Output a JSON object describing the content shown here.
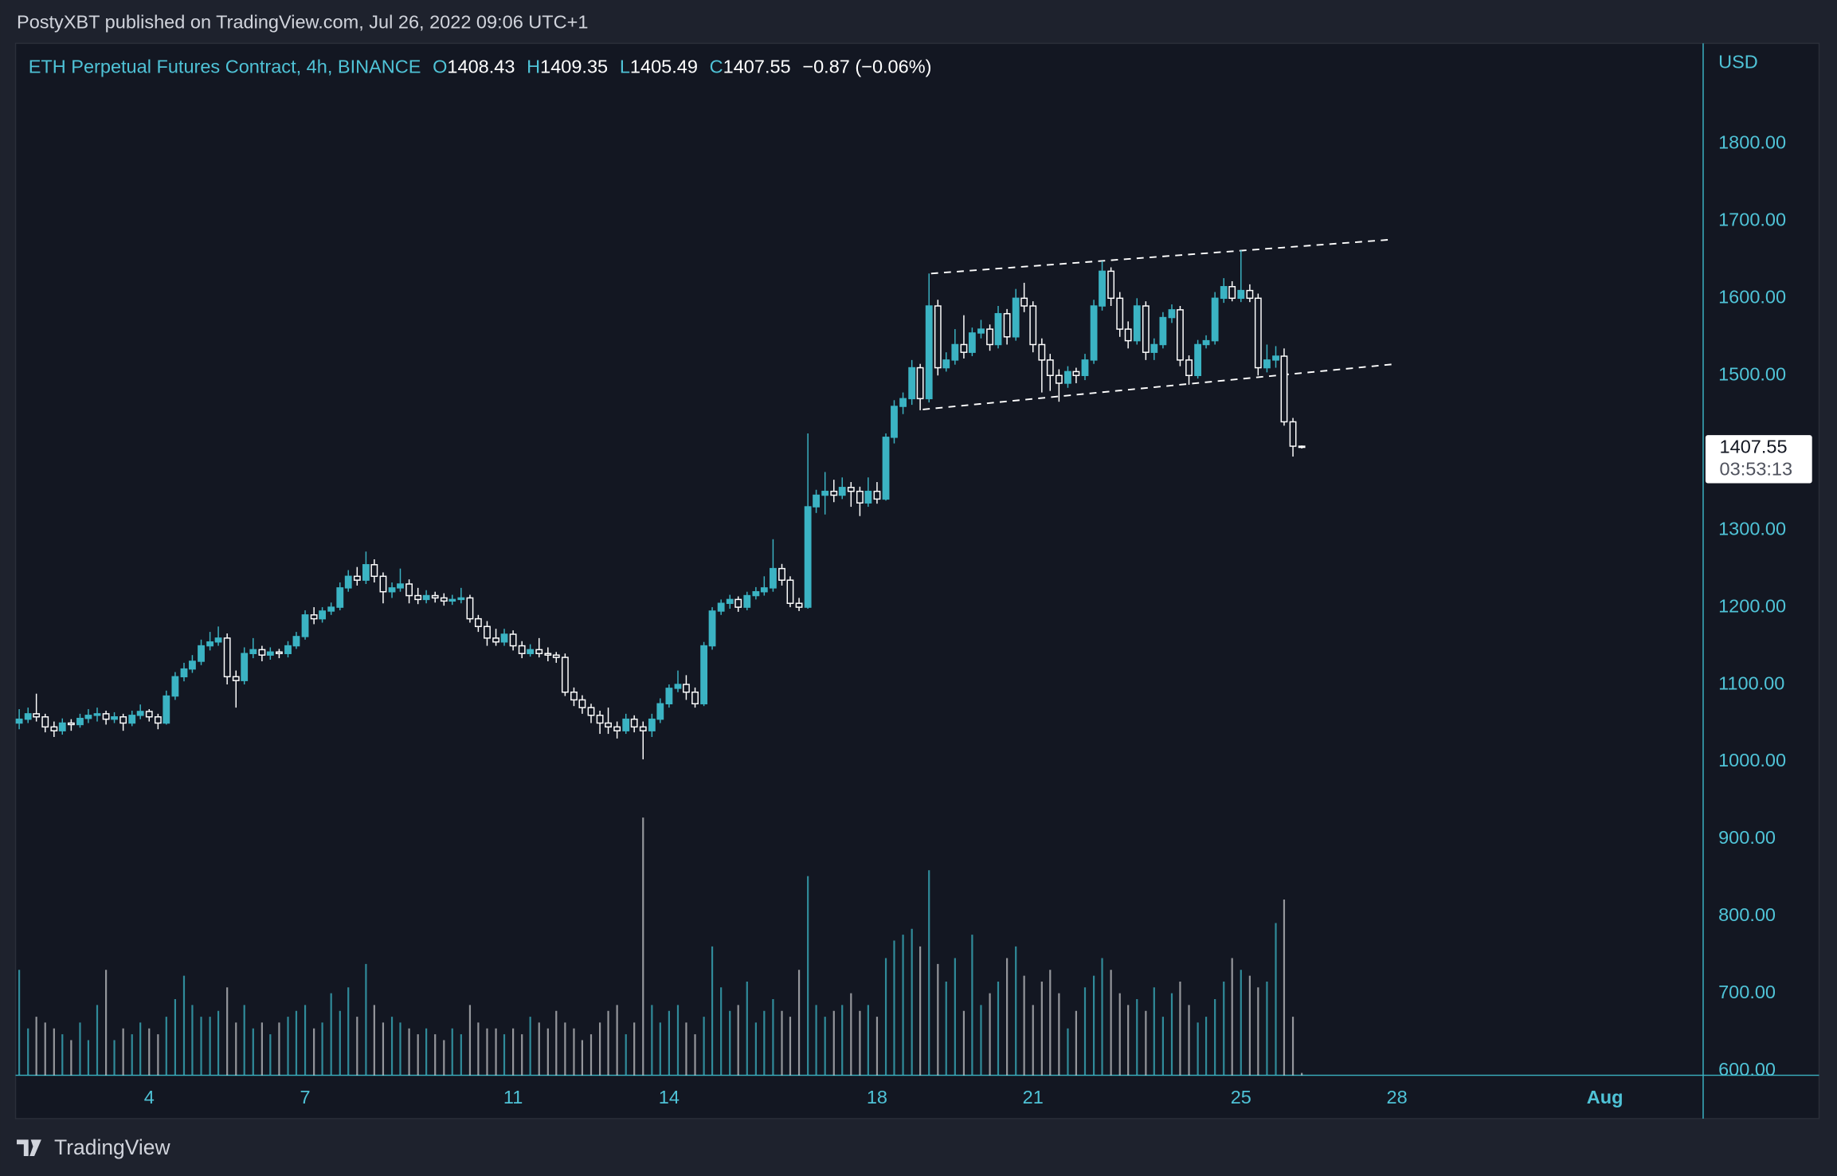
{
  "page": {
    "publisher_line": "PostyXBT published on TradingView.com, Jul 26, 2022 09:06 UTC+1",
    "brand": "TradingView"
  },
  "chart_data": {
    "type": "candlestick",
    "title": "ETH Perpetual Futures Contract, 4h, BINANCE",
    "ohlc_letters": [
      "O",
      "H",
      "L",
      "C"
    ],
    "change_text": "−0.87 (−0.06%)",
    "currency": "USD",
    "countdown": "03:53:13",
    "up_color": "#3bb3c3",
    "down_color": "#ffffff",
    "title_color": "#4fc3d7",
    "xlim": [
      1.43,
      33.89
    ],
    "xticks": [
      4,
      7,
      11,
      14,
      18,
      21,
      25,
      28,
      {
        "value": 32,
        "label": "Aug"
      }
    ],
    "ylim": [
      594,
      1930
    ],
    "yticks": [
      {
        "value": 600,
        "label": "600.00"
      },
      {
        "value": 700,
        "label": "700.00"
      },
      {
        "value": 800,
        "label": "800.00"
      },
      {
        "value": 900,
        "label": "900.00"
      },
      {
        "value": 1000,
        "label": "1000.00"
      },
      {
        "value": 1100,
        "label": "1100.00"
      },
      {
        "value": 1200,
        "label": "1200.00"
      },
      {
        "value": 1300,
        "label": "1300.00"
      },
      {
        "value": 1400,
        "label": "1400.00"
      },
      {
        "value": 1500,
        "label": "1500.00"
      },
      {
        "value": 1600,
        "label": "1600.00"
      },
      {
        "value": 1700,
        "label": "1700.00"
      },
      {
        "value": 1800,
        "label": "1800.00"
      }
    ],
    "x": [
      1.5,
      1.67,
      1.83,
      2,
      2.17,
      2.33,
      2.5,
      2.67,
      2.83,
      3,
      3.17,
      3.33,
      3.5,
      3.67,
      3.83,
      4,
      4.17,
      4.33,
      4.5,
      4.67,
      4.83,
      5,
      5.17,
      5.33,
      5.5,
      5.67,
      5.83,
      6,
      6.17,
      6.33,
      6.5,
      6.67,
      6.83,
      7,
      7.17,
      7.33,
      7.5,
      7.67,
      7.83,
      8,
      8.17,
      8.33,
      8.5,
      8.67,
      8.83,
      9,
      9.17,
      9.33,
      9.5,
      9.67,
      9.83,
      10,
      10.17,
      10.33,
      10.5,
      10.67,
      10.83,
      11,
      11.17,
      11.33,
      11.5,
      11.67,
      11.83,
      12,
      12.17,
      12.33,
      12.5,
      12.67,
      12.83,
      13,
      13.17,
      13.33,
      13.5,
      13.67,
      13.83,
      14,
      14.17,
      14.33,
      14.5,
      14.67,
      14.83,
      15,
      15.17,
      15.33,
      15.5,
      15.67,
      15.83,
      16,
      16.17,
      16.33,
      16.5,
      16.67,
      16.83,
      17,
      17.17,
      17.33,
      17.5,
      17.67,
      17.83,
      18,
      18.17,
      18.33,
      18.5,
      18.67,
      18.83,
      19,
      19.17,
      19.33,
      19.5,
      19.67,
      19.83,
      20,
      20.17,
      20.33,
      20.5,
      20.67,
      20.83,
      21,
      21.17,
      21.33,
      21.5,
      21.67,
      21.83,
      22,
      22.17,
      22.33,
      22.5,
      22.67,
      22.83,
      23,
      23.17,
      23.33,
      23.5,
      23.67,
      23.83,
      24,
      24.17,
      24.33,
      24.5,
      24.67,
      24.83,
      25,
      25.17,
      25.33,
      25.5,
      25.67,
      25.83,
      26,
      26.17
    ],
    "ohlc": [
      [
        1050,
        1068,
        1042,
        1055
      ],
      [
        1055,
        1070,
        1050,
        1062
      ],
      [
        1062,
        1088,
        1052,
        1058
      ],
      [
        1058,
        1062,
        1038,
        1045
      ],
      [
        1045,
        1052,
        1032,
        1040
      ],
      [
        1040,
        1056,
        1035,
        1050
      ],
      [
        1050,
        1055,
        1040,
        1048
      ],
      [
        1048,
        1062,
        1044,
        1056
      ],
      [
        1056,
        1068,
        1050,
        1060
      ],
      [
        1060,
        1070,
        1052,
        1062
      ],
      [
        1062,
        1066,
        1048,
        1055
      ],
      [
        1055,
        1064,
        1050,
        1058
      ],
      [
        1058,
        1062,
        1040,
        1050
      ],
      [
        1050,
        1066,
        1046,
        1060
      ],
      [
        1060,
        1074,
        1055,
        1065
      ],
      [
        1065,
        1068,
        1052,
        1058
      ],
      [
        1058,
        1062,
        1042,
        1050
      ],
      [
        1050,
        1092,
        1048,
        1085
      ],
      [
        1085,
        1116,
        1080,
        1110
      ],
      [
        1110,
        1128,
        1104,
        1120
      ],
      [
        1120,
        1138,
        1115,
        1130
      ],
      [
        1130,
        1158,
        1125,
        1150
      ],
      [
        1150,
        1168,
        1144,
        1155
      ],
      [
        1155,
        1175,
        1150,
        1160
      ],
      [
        1160,
        1166,
        1100,
        1110
      ],
      [
        1110,
        1118,
        1070,
        1105
      ],
      [
        1105,
        1148,
        1100,
        1140
      ],
      [
        1140,
        1160,
        1134,
        1145
      ],
      [
        1145,
        1150,
        1130,
        1138
      ],
      [
        1138,
        1148,
        1132,
        1142
      ],
      [
        1142,
        1146,
        1134,
        1140
      ],
      [
        1140,
        1156,
        1135,
        1150
      ],
      [
        1150,
        1168,
        1146,
        1162
      ],
      [
        1162,
        1196,
        1158,
        1190
      ],
      [
        1190,
        1200,
        1178,
        1185
      ],
      [
        1185,
        1200,
        1180,
        1195
      ],
      [
        1195,
        1206,
        1190,
        1200
      ],
      [
        1200,
        1232,
        1196,
        1225
      ],
      [
        1225,
        1248,
        1220,
        1240
      ],
      [
        1240,
        1252,
        1228,
        1235
      ],
      [
        1235,
        1272,
        1230,
        1255
      ],
      [
        1255,
        1262,
        1232,
        1240
      ],
      [
        1240,
        1245,
        1205,
        1220
      ],
      [
        1220,
        1232,
        1212,
        1225
      ],
      [
        1225,
        1250,
        1220,
        1230
      ],
      [
        1230,
        1236,
        1205,
        1215
      ],
      [
        1215,
        1225,
        1204,
        1210
      ],
      [
        1210,
        1222,
        1205,
        1215
      ],
      [
        1215,
        1220,
        1206,
        1212
      ],
      [
        1212,
        1218,
        1202,
        1208
      ],
      [
        1208,
        1216,
        1203,
        1210
      ],
      [
        1210,
        1225,
        1205,
        1212
      ],
      [
        1212,
        1216,
        1180,
        1185
      ],
      [
        1185,
        1190,
        1168,
        1175
      ],
      [
        1175,
        1182,
        1150,
        1160
      ],
      [
        1160,
        1172,
        1150,
        1155
      ],
      [
        1155,
        1172,
        1150,
        1165
      ],
      [
        1165,
        1170,
        1144,
        1150
      ],
      [
        1150,
        1156,
        1134,
        1140
      ],
      [
        1140,
        1152,
        1136,
        1145
      ],
      [
        1145,
        1160,
        1135,
        1140
      ],
      [
        1140,
        1148,
        1130,
        1138
      ],
      [
        1138,
        1142,
        1128,
        1135
      ],
      [
        1135,
        1140,
        1085,
        1090
      ],
      [
        1090,
        1096,
        1072,
        1080
      ],
      [
        1080,
        1086,
        1062,
        1070
      ],
      [
        1070,
        1075,
        1050,
        1060
      ],
      [
        1060,
        1066,
        1036,
        1050
      ],
      [
        1050,
        1070,
        1036,
        1045
      ],
      [
        1045,
        1052,
        1030,
        1040
      ],
      [
        1040,
        1062,
        1036,
        1055
      ],
      [
        1055,
        1060,
        1038,
        1045
      ],
      [
        1045,
        1052,
        1003,
        1040
      ],
      [
        1040,
        1062,
        1032,
        1055
      ],
      [
        1055,
        1082,
        1050,
        1075
      ],
      [
        1075,
        1100,
        1070,
        1095
      ],
      [
        1095,
        1118,
        1090,
        1100
      ],
      [
        1100,
        1112,
        1080,
        1090
      ],
      [
        1090,
        1096,
        1070,
        1075
      ],
      [
        1075,
        1155,
        1072,
        1150
      ],
      [
        1150,
        1200,
        1145,
        1195
      ],
      [
        1195,
        1210,
        1190,
        1205
      ],
      [
        1205,
        1216,
        1198,
        1210
      ],
      [
        1210,
        1214,
        1194,
        1200
      ],
      [
        1200,
        1220,
        1196,
        1215
      ],
      [
        1215,
        1226,
        1210,
        1220
      ],
      [
        1220,
        1240,
        1215,
        1225
      ],
      [
        1225,
        1288,
        1220,
        1250
      ],
      [
        1250,
        1256,
        1228,
        1235
      ],
      [
        1235,
        1240,
        1200,
        1205
      ],
      [
        1205,
        1212,
        1195,
        1200
      ],
      [
        1200,
        1425,
        1198,
        1330
      ],
      [
        1330,
        1352,
        1322,
        1345
      ],
      [
        1345,
        1375,
        1320,
        1350
      ],
      [
        1350,
        1365,
        1336,
        1345
      ],
      [
        1345,
        1368,
        1340,
        1355
      ],
      [
        1355,
        1362,
        1330,
        1350
      ],
      [
        1350,
        1356,
        1318,
        1335
      ],
      [
        1335,
        1368,
        1330,
        1350
      ],
      [
        1350,
        1362,
        1334,
        1340
      ],
      [
        1340,
        1425,
        1338,
        1420
      ],
      [
        1420,
        1468,
        1412,
        1460
      ],
      [
        1460,
        1478,
        1450,
        1470
      ],
      [
        1470,
        1520,
        1462,
        1510
      ],
      [
        1510,
        1515,
        1455,
        1470
      ],
      [
        1470,
        1632,
        1465,
        1590
      ],
      [
        1590,
        1598,
        1500,
        1510
      ],
      [
        1510,
        1530,
        1505,
        1520
      ],
      [
        1520,
        1560,
        1514,
        1540
      ],
      [
        1540,
        1578,
        1522,
        1530
      ],
      [
        1530,
        1562,
        1525,
        1555
      ],
      [
        1555,
        1572,
        1548,
        1560
      ],
      [
        1560,
        1566,
        1532,
        1540
      ],
      [
        1540,
        1590,
        1535,
        1580
      ],
      [
        1580,
        1586,
        1540,
        1550
      ],
      [
        1550,
        1612,
        1545,
        1600
      ],
      [
        1600,
        1620,
        1582,
        1590
      ],
      [
        1590,
        1596,
        1530,
        1540
      ],
      [
        1540,
        1548,
        1478,
        1520
      ],
      [
        1520,
        1528,
        1480,
        1500
      ],
      [
        1500,
        1508,
        1466,
        1490
      ],
      [
        1490,
        1512,
        1484,
        1505
      ],
      [
        1505,
        1510,
        1490,
        1500
      ],
      [
        1500,
        1528,
        1494,
        1520
      ],
      [
        1520,
        1598,
        1515,
        1590
      ],
      [
        1590,
        1648,
        1584,
        1635
      ],
      [
        1635,
        1640,
        1590,
        1600
      ],
      [
        1600,
        1608,
        1550,
        1560
      ],
      [
        1560,
        1570,
        1535,
        1545
      ],
      [
        1545,
        1600,
        1540,
        1590
      ],
      [
        1590,
        1596,
        1520,
        1530
      ],
      [
        1530,
        1548,
        1520,
        1540
      ],
      [
        1540,
        1582,
        1535,
        1575
      ],
      [
        1575,
        1592,
        1568,
        1585
      ],
      [
        1585,
        1590,
        1512,
        1520
      ],
      [
        1520,
        1526,
        1488,
        1500
      ],
      [
        1500,
        1546,
        1496,
        1540
      ],
      [
        1540,
        1552,
        1535,
        1545
      ],
      [
        1545,
        1608,
        1540,
        1600
      ],
      [
        1600,
        1626,
        1594,
        1615
      ],
      [
        1615,
        1622,
        1596,
        1600
      ],
      [
        1600,
        1662,
        1595,
        1610
      ],
      [
        1610,
        1618,
        1595,
        1600
      ],
      [
        1600,
        1606,
        1500,
        1510
      ],
      [
        1510,
        1540,
        1504,
        1520
      ],
      [
        1520,
        1538,
        1510,
        1525
      ],
      [
        1525,
        1535,
        1435,
        1440
      ],
      [
        1440,
        1445,
        1395,
        1408.43
      ],
      [
        1408.43,
        1409.35,
        1405.49,
        1407.55
      ]
    ],
    "volume": [
      90,
      40,
      50,
      45,
      40,
      35,
      30,
      45,
      30,
      60,
      90,
      30,
      40,
      35,
      45,
      40,
      35,
      50,
      65,
      85,
      60,
      50,
      50,
      55,
      75,
      45,
      60,
      40,
      45,
      35,
      45,
      50,
      55,
      60,
      40,
      45,
      70,
      55,
      75,
      50,
      95,
      60,
      45,
      50,
      45,
      40,
      35,
      40,
      35,
      30,
      40,
      35,
      60,
      45,
      40,
      40,
      35,
      40,
      35,
      50,
      45,
      40,
      55,
      45,
      40,
      30,
      35,
      45,
      55,
      60,
      35,
      45,
      220,
      60,
      45,
      55,
      60,
      45,
      35,
      50,
      110,
      75,
      55,
      60,
      80,
      45,
      55,
      65,
      55,
      50,
      90,
      170,
      60,
      50,
      55,
      60,
      70,
      55,
      60,
      50,
      100,
      115,
      120,
      125,
      110,
      175,
      95,
      80,
      100,
      55,
      120,
      60,
      70,
      80,
      100,
      110,
      85,
      60,
      80,
      90,
      70,
      40,
      55,
      75,
      85,
      100,
      90,
      70,
      60,
      65,
      55,
      75,
      50,
      70,
      80,
      60,
      45,
      50,
      65,
      80,
      100,
      90,
      85,
      75,
      80,
      130,
      150,
      50,
      2
    ],
    "trendlines": [
      {
        "x": [
          19.04,
          27.9
        ],
        "y": [
          1632,
          1676
        ]
      },
      {
        "x": [
          18.88,
          28.0
        ],
        "y": [
          1456,
          1515
        ]
      }
    ]
  }
}
